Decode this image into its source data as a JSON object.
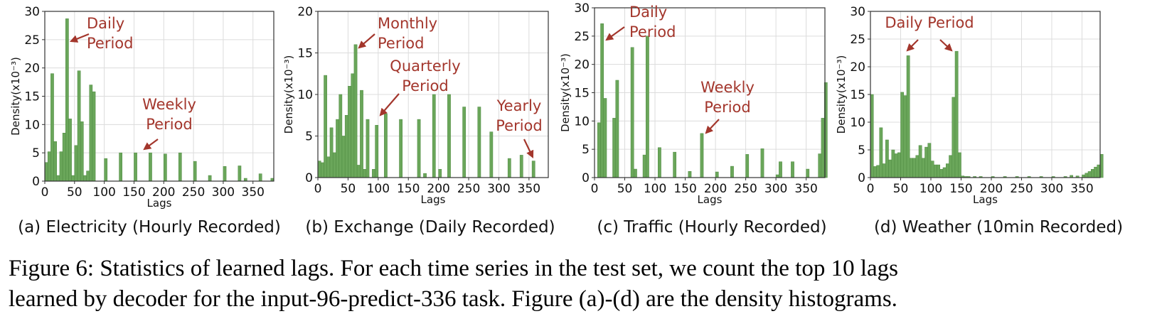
{
  "colors": {
    "bar": "#6aa65a",
    "bar_edge": "#4e8a40",
    "annotation": "#a3362c",
    "grid": "#dcdcdc",
    "axis": "#333333"
  },
  "caption": {
    "line1": "Figure 6: Statistics of learned lags. For each time series in the test set, we count the top 10 lags",
    "line2": "learned by decoder for the input-96-predict-336 task. Figure (a)-(d) are the density histograms."
  },
  "chart_data": [
    {
      "type": "bar",
      "subtitle": "(a) Electricity (Hourly Recorded)",
      "xlabel": "Lags",
      "ylabel": "Density(x10⁻³)",
      "xlim": [
        0,
        385
      ],
      "ylim": [
        0,
        30
      ],
      "xticks": [
        0,
        50,
        100,
        150,
        200,
        250,
        300,
        350
      ],
      "yticks": [
        0,
        5,
        10,
        15,
        20,
        25,
        30
      ],
      "bin_width": 5,
      "grid": true,
      "bars": [
        [
          0,
          3.3
        ],
        [
          5,
          5.2
        ],
        [
          10,
          19
        ],
        [
          15,
          7
        ],
        [
          20,
          1
        ],
        [
          25,
          5.2
        ],
        [
          30,
          8.5
        ],
        [
          35,
          28.7
        ],
        [
          40,
          11
        ],
        [
          45,
          1
        ],
        [
          50,
          6.3
        ],
        [
          55,
          19.5
        ],
        [
          60,
          10.5
        ],
        [
          65,
          1
        ],
        [
          70,
          1.8
        ],
        [
          75,
          17
        ],
        [
          80,
          15.8
        ],
        [
          100,
          4
        ],
        [
          125,
          5
        ],
        [
          150,
          5
        ],
        [
          175,
          5
        ],
        [
          200,
          4.8
        ],
        [
          225,
          5
        ],
        [
          250,
          3.5
        ],
        [
          275,
          1
        ],
        [
          300,
          2.6
        ],
        [
          325,
          2.7
        ],
        [
          335,
          0.5
        ],
        [
          360,
          1.3
        ],
        [
          380,
          0.5
        ]
      ],
      "annotations": [
        {
          "text": [
            "Daily",
            "Period"
          ],
          "target": [
            39,
            24.5
          ]
        },
        {
          "text": [
            "Weekly",
            "Period"
          ],
          "target": [
            168,
            5.5
          ]
        }
      ]
    },
    {
      "type": "bar",
      "subtitle": "(b) Exchange (Daily Recorded)",
      "xlabel": "Lags",
      "ylabel": "Density(x10⁻³)",
      "xlim": [
        0,
        382
      ],
      "ylim": [
        0,
        20
      ],
      "xticks": [
        0,
        50,
        100,
        150,
        200,
        250,
        300,
        350
      ],
      "yticks": [
        0,
        5,
        10,
        15,
        20
      ],
      "bin_width": 5,
      "grid": true,
      "bars": [
        [
          0,
          2
        ],
        [
          5,
          1.8
        ],
        [
          10,
          12.3
        ],
        [
          15,
          2.5
        ],
        [
          20,
          6
        ],
        [
          25,
          3
        ],
        [
          30,
          7
        ],
        [
          35,
          10
        ],
        [
          40,
          5
        ],
        [
          45,
          7.5
        ],
        [
          50,
          11
        ],
        [
          55,
          12.5
        ],
        [
          60,
          16
        ],
        [
          65,
          1.5
        ],
        [
          70,
          10.5
        ],
        [
          75,
          1
        ],
        [
          80,
          7
        ],
        [
          90,
          1
        ],
        [
          95,
          6.3
        ],
        [
          110,
          7.7
        ],
        [
          135,
          7
        ],
        [
          165,
          7
        ],
        [
          175,
          0.5
        ],
        [
          190,
          10
        ],
        [
          200,
          1
        ],
        [
          215,
          10
        ],
        [
          240,
          8.5
        ],
        [
          265,
          8.5
        ],
        [
          285,
          5.5
        ],
        [
          315,
          2.3
        ],
        [
          335,
          2.7
        ],
        [
          355,
          2
        ]
      ],
      "annotations": [
        {
          "text": [
            "Monthly",
            "Period"
          ],
          "target": [
            70,
            15.5
          ]
        },
        {
          "text": [
            "Quarterly",
            "Period"
          ],
          "target": [
            106,
            7.5
          ]
        },
        {
          "text": [
            "Yearly",
            "Period"
          ],
          "target": [
            361,
            2.3
          ]
        }
      ]
    },
    {
      "type": "bar",
      "subtitle": "(c) Traffic (Hourly Recorded)",
      "xlabel": "Lags",
      "ylabel": "Density(x10⁻³)",
      "xlim": [
        0,
        381
      ],
      "ylim": [
        0,
        30
      ],
      "xticks": [
        0,
        50,
        100,
        150,
        200,
        250,
        300,
        350
      ],
      "yticks": [
        0,
        5,
        10,
        15,
        20,
        25,
        30
      ],
      "bin_width": 5,
      "grid": true,
      "bars": [
        [
          5,
          9.7
        ],
        [
          10,
          27.2
        ],
        [
          15,
          14
        ],
        [
          30,
          10.5
        ],
        [
          35,
          17.2
        ],
        [
          60,
          23
        ],
        [
          65,
          1.5
        ],
        [
          80,
          4
        ],
        [
          85,
          25
        ],
        [
          105,
          5.3
        ],
        [
          130,
          4.5
        ],
        [
          155,
          1.1
        ],
        [
          175,
          7.8
        ],
        [
          200,
          1
        ],
        [
          225,
          2
        ],
        [
          250,
          4.1
        ],
        [
          275,
          5.1
        ],
        [
          300,
          0.5
        ],
        [
          305,
          2.8
        ],
        [
          325,
          2.8
        ],
        [
          350,
          1.5
        ],
        [
          370,
          4.2
        ],
        [
          375,
          10.5
        ],
        [
          380,
          16.8
        ]
      ],
      "annotations": [
        {
          "text": [
            "Daily",
            "Period"
          ],
          "target": [
            20,
            25.5
          ]
        },
        {
          "text": [
            "Weekly",
            "Period"
          ],
          "target": [
            188,
            8
          ]
        }
      ]
    },
    {
      "type": "bar",
      "subtitle": "(d) Weather (10min Recorded)",
      "xlabel": "Lags",
      "ylabel": "Density(x10⁻³)",
      "xlim": [
        0,
        380
      ],
      "ylim": [
        0,
        30
      ],
      "xticks": [
        0,
        50,
        100,
        150,
        200,
        250,
        300,
        350
      ],
      "yticks": [
        0,
        5,
        10,
        15,
        20,
        25,
        30
      ],
      "bin_width": 5,
      "grid": true,
      "bars": [
        [
          0,
          15
        ],
        [
          5,
          2
        ],
        [
          10,
          2.2
        ],
        [
          15,
          9
        ],
        [
          20,
          2.5
        ],
        [
          25,
          6.8
        ],
        [
          30,
          3.2
        ],
        [
          35,
          5
        ],
        [
          40,
          4.3
        ],
        [
          45,
          4.5
        ],
        [
          50,
          15.4
        ],
        [
          55,
          14.8
        ],
        [
          60,
          22
        ],
        [
          65,
          3.5
        ],
        [
          70,
          3.5
        ],
        [
          75,
          4
        ],
        [
          80,
          5.8
        ],
        [
          85,
          3.5
        ],
        [
          90,
          5.5
        ],
        [
          95,
          6.2
        ],
        [
          100,
          3
        ],
        [
          105,
          2.3
        ],
        [
          110,
          2.3
        ],
        [
          115,
          1.5
        ],
        [
          120,
          1.8
        ],
        [
          125,
          2.5
        ],
        [
          130,
          4
        ],
        [
          135,
          14.5
        ],
        [
          140,
          22.8
        ],
        [
          145,
          4.5
        ],
        [
          150,
          0.3
        ],
        [
          155,
          0.2
        ],
        [
          160,
          0.2
        ],
        [
          170,
          0.2
        ],
        [
          180,
          0.2
        ],
        [
          200,
          0.2
        ],
        [
          220,
          0.2
        ],
        [
          240,
          0.2
        ],
        [
          260,
          0.2
        ],
        [
          280,
          0.2
        ],
        [
          300,
          0.2
        ],
        [
          320,
          0.2
        ],
        [
          330,
          0.4
        ],
        [
          340,
          0.3
        ],
        [
          350,
          0.5
        ],
        [
          355,
          0.8
        ],
        [
          360,
          1.1
        ],
        [
          365,
          1.5
        ],
        [
          370,
          1.9
        ],
        [
          375,
          2.3
        ],
        [
          380,
          4.2
        ]
      ],
      "annotations": [
        {
          "text": [
            "Daily Period"
          ],
          "target": [
            56,
            22.8
          ]
        },
        {
          "text": [],
          "target": [
            138,
            23.3
          ]
        }
      ]
    }
  ]
}
